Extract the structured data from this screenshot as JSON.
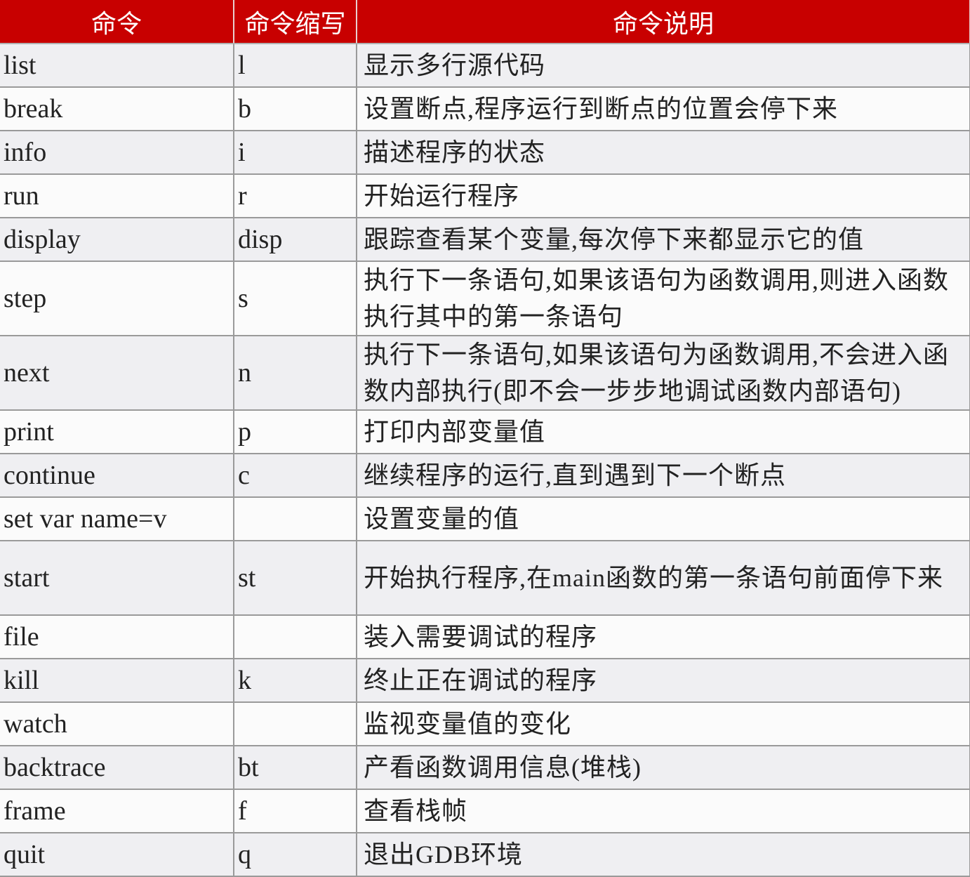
{
  "header": {
    "command": "命令",
    "abbr": "命令缩写",
    "desc": "命令说明"
  },
  "header_color": "#c80000",
  "rows": [
    {
      "command": "list",
      "abbr": "l",
      "desc": "显示多行源代码"
    },
    {
      "command": "break",
      "abbr": "b",
      "desc": "设置断点,程序运行到断点的位置会停下来"
    },
    {
      "command": "info",
      "abbr": "i",
      "desc": "描述程序的状态"
    },
    {
      "command": "run",
      "abbr": "r",
      "desc": "开始运行程序"
    },
    {
      "command": "display",
      "abbr": "disp",
      "desc": "跟踪查看某个变量,每次停下来都显示它的值"
    },
    {
      "command": "step",
      "abbr": "s",
      "desc": "执行下一条语句,如果该语句为函数调用,则进入函数执行其中的第一条语句"
    },
    {
      "command": "next",
      "abbr": "n",
      "desc": "执行下一条语句,如果该语句为函数调用,不会进入函数内部执行(即不会一步步地调试函数内部语句)"
    },
    {
      "command": "print",
      "abbr": "p",
      "desc": "打印内部变量值"
    },
    {
      "command": "continue",
      "abbr": "c",
      "desc": "继续程序的运行,直到遇到下一个断点"
    },
    {
      "command": "set var name=v",
      "abbr": "",
      "desc": "设置变量的值"
    },
    {
      "command": "start",
      "abbr": "st",
      "desc": "开始执行程序,在main函数的第一条语句前面停下来"
    },
    {
      "command": "file",
      "abbr": "",
      "desc": "装入需要调试的程序"
    },
    {
      "command": "kill",
      "abbr": "k",
      "desc": "终止正在调试的程序"
    },
    {
      "command": "watch",
      "abbr": "",
      "desc": "监视变量值的变化"
    },
    {
      "command": "backtrace",
      "abbr": "bt",
      "desc": "产看函数调用信息(堆栈)"
    },
    {
      "command": "frame",
      "abbr": "f",
      "desc": "查看栈帧"
    },
    {
      "command": "quit",
      "abbr": "q",
      "desc": "退出GDB环境"
    }
  ]
}
